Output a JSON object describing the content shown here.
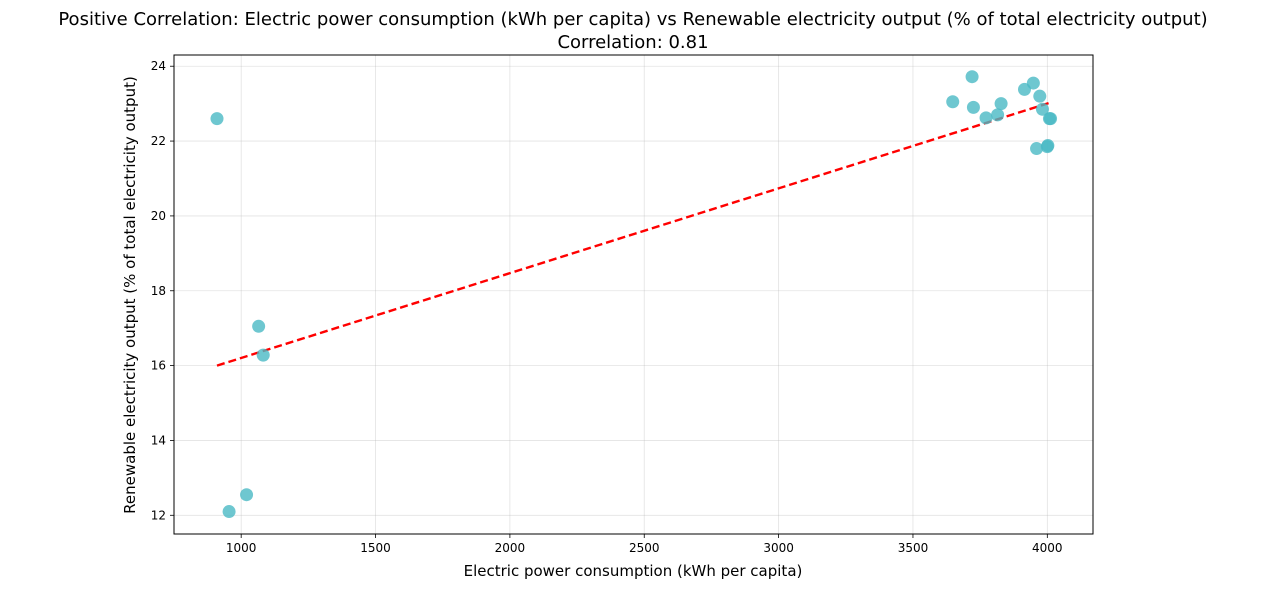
{
  "chart_data": {
    "type": "scatter",
    "title": "Positive Correlation: Electric power consumption (kWh per capita) vs Renewable electricity output (% of total electricity output)",
    "subtitle": "Correlation: 0.81",
    "xlabel": "Electric power consumption (kWh per capita)",
    "ylabel": "Renewable electricity output (% of total electricity output)",
    "xlim": [
      750,
      4170
    ],
    "ylim": [
      11.5,
      24.3
    ],
    "xticks": [
      1000,
      1500,
      2000,
      2500,
      3000,
      3500,
      4000
    ],
    "yticks": [
      12,
      14,
      16,
      18,
      20,
      22,
      24
    ],
    "grid": true,
    "colors": {
      "points": "#4ab9c4",
      "trendline": "#ff0000"
    },
    "series": [
      {
        "x": [
          910,
          955,
          1020,
          1065,
          1082,
          3648,
          3720,
          3725,
          3772,
          3815,
          3828,
          3915,
          3948,
          3960,
          3972,
          3982,
          4000,
          4002,
          4008,
          4012
        ],
        "y": [
          22.6,
          12.1,
          12.55,
          17.05,
          16.28,
          23.05,
          23.72,
          22.9,
          22.62,
          22.7,
          23.0,
          23.38,
          23.55,
          21.8,
          23.2,
          22.85,
          21.85,
          21.88,
          22.6,
          22.6
        ]
      }
    ],
    "trendline": {
      "x": [
        910,
        4012
      ],
      "y": [
        16.0,
        23.03
      ]
    }
  }
}
